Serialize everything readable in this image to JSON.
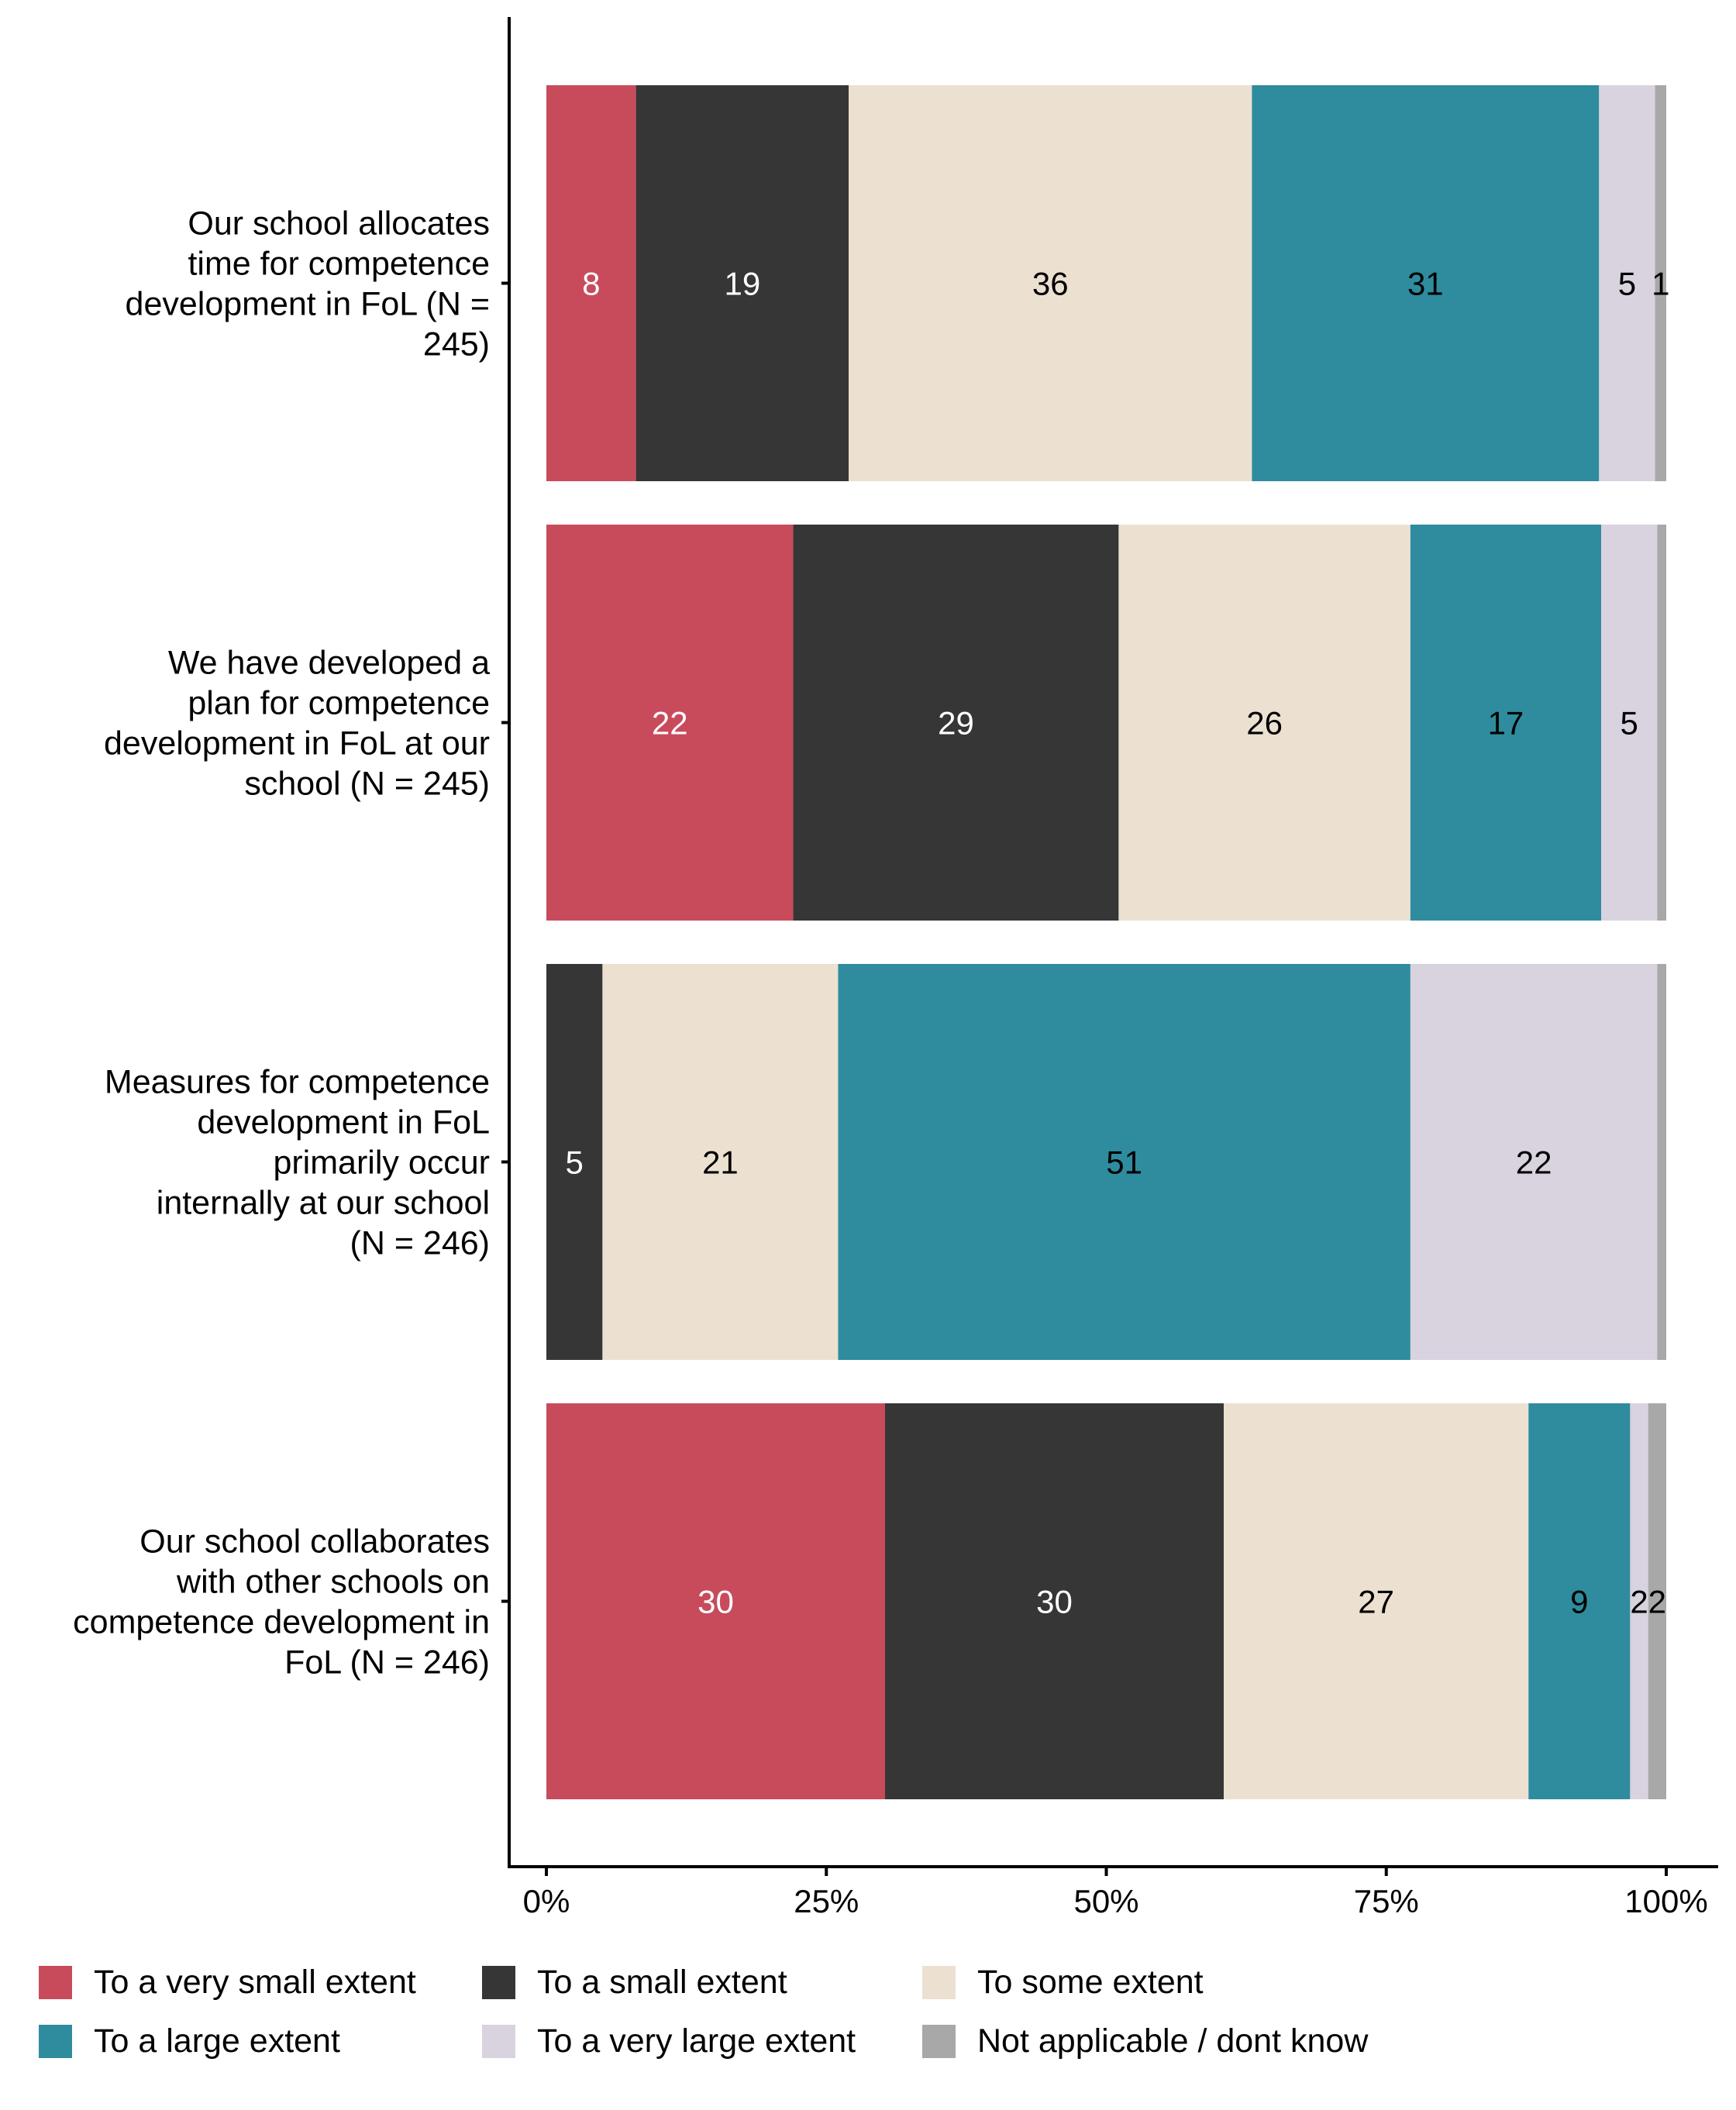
{
  "chart_data": {
    "type": "bar",
    "orientation": "horizontal",
    "stacked": true,
    "normalized": true,
    "title": "",
    "xlabel": "",
    "ylabel": "",
    "xlim": [
      0,
      100
    ],
    "x_ticks": [
      "0%",
      "25%",
      "50%",
      "75%",
      "100%"
    ],
    "x_tick_values": [
      0,
      25,
      50,
      75,
      100
    ],
    "grid": false,
    "legend_position": "bottom",
    "categories": [
      [
        "Our school allocates",
        "time for competence",
        "development in FoL (N =",
        "245)"
      ],
      [
        "We have developed a",
        "plan for competence",
        "development in FoL at our",
        "school (N = 245)"
      ],
      [
        "Measures for competence",
        "development in FoL",
        "primarily occur",
        "internally at our school",
        "(N = 246)"
      ],
      [
        "Our school collaborates",
        "with other schools on",
        "competence development in",
        "FoL (N = 246)"
      ]
    ],
    "series": [
      {
        "name": "To a very small extent",
        "color": "#C84B5C",
        "label_color": "#FFFFFF",
        "values": [
          8,
          22,
          0,
          30
        ],
        "labels": [
          "8",
          "22",
          "",
          "30"
        ]
      },
      {
        "name": "To a small extent",
        "color": "#363636",
        "label_color": "#FFFFFF",
        "values": [
          19,
          29,
          5,
          30
        ],
        "labels": [
          "19",
          "29",
          "5",
          "30"
        ]
      },
      {
        "name": "To some extent",
        "color": "#ECE1D1",
        "label_color": "#000000",
        "values": [
          36,
          26,
          21,
          27
        ],
        "labels": [
          "36",
          "26",
          "21",
          "27"
        ]
      },
      {
        "name": "To a large extent",
        "color": "#2E8C9E",
        "label_color": "#000000",
        "values": [
          31,
          17,
          51,
          9
        ],
        "labels": [
          "31",
          "17",
          "51",
          "9"
        ]
      },
      {
        "name": "To a very large extent",
        "color": "#D9D2DF",
        "label_color": "#000000",
        "values": [
          5,
          5,
          22,
          1.6
        ],
        "labels": [
          "5",
          "5",
          "22",
          "2"
        ]
      },
      {
        "name": "Not applicable / dont know",
        "color": "#A8A8A8",
        "label_color": "#000000",
        "values": [
          1,
          0.8,
          0.8,
          1.6
        ],
        "labels": [
          "1",
          "",
          "",
          "2"
        ]
      }
    ]
  },
  "legend": {
    "rows": [
      [
        0,
        1,
        2
      ],
      [
        3,
        4,
        5
      ]
    ]
  }
}
